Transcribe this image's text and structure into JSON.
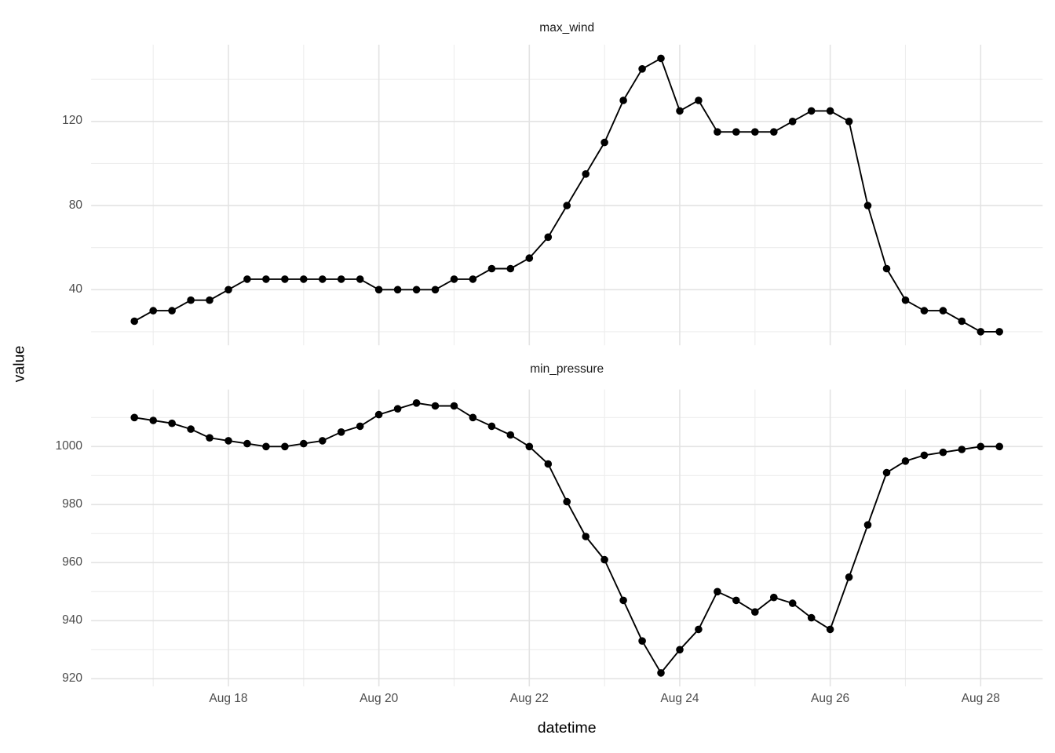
{
  "chart_data": {
    "type": "line",
    "faceted": true,
    "title": "",
    "xlabel": "datetime",
    "ylabel": "value",
    "grid": true,
    "legend": false,
    "x": [
      "Aug 16 18:00",
      "Aug 17 00:00",
      "Aug 17 06:00",
      "Aug 17 12:00",
      "Aug 17 18:00",
      "Aug 18 00:00",
      "Aug 18 06:00",
      "Aug 18 12:00",
      "Aug 18 18:00",
      "Aug 19 00:00",
      "Aug 19 06:00",
      "Aug 19 12:00",
      "Aug 19 18:00",
      "Aug 20 00:00",
      "Aug 20 06:00",
      "Aug 20 12:00",
      "Aug 20 18:00",
      "Aug 21 00:00",
      "Aug 21 06:00",
      "Aug 21 12:00",
      "Aug 21 18:00",
      "Aug 22 00:00",
      "Aug 22 06:00",
      "Aug 22 12:00",
      "Aug 22 18:00",
      "Aug 23 00:00",
      "Aug 23 06:00",
      "Aug 23 12:00",
      "Aug 23 18:00",
      "Aug 24 00:00",
      "Aug 24 06:00",
      "Aug 24 12:00",
      "Aug 24 18:00",
      "Aug 25 00:00",
      "Aug 25 06:00",
      "Aug 25 12:00",
      "Aug 25 18:00",
      "Aug 26 00:00",
      "Aug 26 06:00",
      "Aug 26 12:00",
      "Aug 26 18:00",
      "Aug 27 00:00",
      "Aug 27 06:00",
      "Aug 27 12:00",
      "Aug 27 18:00",
      "Aug 28 00:00",
      "Aug 28 06:00"
    ],
    "x_axis": {
      "tick_labels": [
        "Aug 18",
        "Aug 20",
        "Aug 22",
        "Aug 24",
        "Aug 26",
        "Aug 28"
      ],
      "minor_tick_days": [
        "Aug 17",
        "Aug 19",
        "Aug 21",
        "Aug 23",
        "Aug 25",
        "Aug 27"
      ]
    },
    "facets": [
      {
        "title": "max_wind",
        "y_tick_labels": [
          40,
          80,
          120
        ],
        "y_minor_gridlines": [
          20,
          60,
          100,
          140
        ],
        "ylim": [
          13.5,
          156.5
        ],
        "values": [
          25,
          30,
          30,
          35,
          35,
          40,
          45,
          45,
          45,
          45,
          45,
          45,
          45,
          40,
          40,
          40,
          40,
          45,
          45,
          50,
          50,
          55,
          65,
          80,
          95,
          110,
          130,
          145,
          150,
          125,
          130,
          115,
          115,
          115,
          115,
          120,
          125,
          125,
          120,
          80,
          50,
          35,
          30,
          30,
          25,
          20,
          20
        ]
      },
      {
        "title": "min_pressure",
        "y_tick_labels": [
          920,
          940,
          960,
          980,
          1000
        ],
        "y_minor_gridlines": [
          930,
          950,
          970,
          990,
          1010
        ],
        "ylim": [
          917.4,
          1019.7
        ],
        "values": [
          1010,
          1009,
          1008,
          1006,
          1003,
          1002,
          1001,
          1000,
          1000,
          1001,
          1002,
          1005,
          1007,
          1011,
          1013,
          1015,
          1014,
          1014,
          1010,
          1007,
          1004,
          1000,
          994,
          981,
          969,
          961,
          947,
          933,
          922,
          930,
          937,
          950,
          947,
          943,
          948,
          946,
          941,
          937,
          955,
          973,
          991,
          995,
          997,
          998,
          999,
          1000,
          1000
        ]
      }
    ],
    "style": {
      "background": "#ffffff",
      "line_color": "#000000",
      "point_color": "#000000",
      "grid_major_color": "#e3e3e3",
      "grid_minor_color": "#ededed",
      "tick_label_color": "#4d4d4d",
      "facet_title_color": "#1a1a1a",
      "axis_title_color": "#000000"
    }
  }
}
